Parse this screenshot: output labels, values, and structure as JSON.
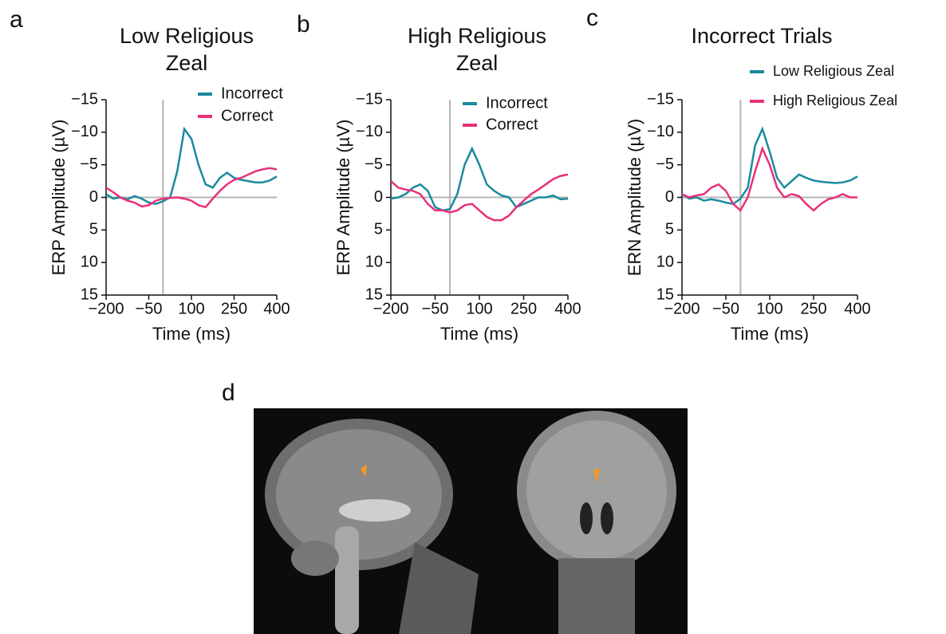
{
  "chart_data": [
    {
      "type": "line",
      "panel": "a",
      "title": "Low Religious Zeal",
      "x_label": "Time (ms)",
      "y_label": "ERP Amplitude (µV)",
      "x": [
        -200,
        -175,
        -150,
        -125,
        -100,
        -75,
        -50,
        -25,
        0,
        25,
        50,
        75,
        100,
        125,
        150,
        175,
        200,
        225,
        250,
        275,
        300,
        325,
        350,
        375,
        400
      ],
      "series": [
        {
          "name": "Incorrect",
          "color": "#1a8a9f",
          "values": [
            -0.5,
            0.2,
            0,
            0.3,
            -0.2,
            0.2,
            0.8,
            1,
            0.6,
            0,
            -4,
            -10.5,
            -9,
            -5,
            -2,
            -1.5,
            -3,
            -3.8,
            -3,
            -2.7,
            -2.5,
            -2.3,
            -2.3,
            -2.6,
            -3.2
          ]
        },
        {
          "name": "Correct",
          "color": "#e8317a",
          "values": [
            -1.5,
            -0.8,
            0,
            0.5,
            0.8,
            1.4,
            1.2,
            0.5,
            0.2,
            0.1,
            0,
            0.2,
            0.5,
            1.2,
            1.5,
            0.2,
            -1,
            -2,
            -2.7,
            -3,
            -3.5,
            -4,
            -4.3,
            -4.5,
            -4.3
          ]
        }
      ],
      "xlim": [
        -200,
        400
      ],
      "xticks": [
        {
          "value": -200,
          "label": "−200"
        },
        {
          "value": -50,
          "label": "−50"
        },
        100,
        250,
        400
      ],
      "ylim": [
        15,
        -15
      ],
      "yticks": [
        {
          "value": -15,
          "label": "−15"
        },
        {
          "value": -10,
          "label": "−10"
        },
        {
          "value": -5,
          "label": "−5"
        },
        0,
        5,
        10,
        15
      ],
      "vline": 0,
      "hline": 0
    },
    {
      "type": "line",
      "panel": "b",
      "title": "High Religious Zeal",
      "x_label": "Time (ms)",
      "y_label": "ERP Amplitude (µV)",
      "x": [
        -200,
        -175,
        -150,
        -125,
        -100,
        -75,
        -50,
        -25,
        0,
        25,
        50,
        75,
        100,
        125,
        150,
        175,
        200,
        225,
        250,
        275,
        300,
        325,
        350,
        375,
        400
      ],
      "series": [
        {
          "name": "Incorrect",
          "color": "#1a8a9f",
          "values": [
            0.2,
            0,
            -0.5,
            -1.5,
            -2,
            -1,
            1.5,
            2,
            1.8,
            -0.5,
            -5,
            -7.5,
            -5,
            -2,
            -1,
            -0.3,
            0,
            1.5,
            1,
            0.5,
            0,
            0,
            -0.3,
            0.3,
            0.2
          ]
        },
        {
          "name": "Correct",
          "color": "#e8317a",
          "values": [
            -2.5,
            -1.5,
            -1.2,
            -1,
            -0.5,
            1,
            2,
            2,
            2.3,
            2,
            1.2,
            1,
            2,
            3,
            3.5,
            3.5,
            2.8,
            1.5,
            0.5,
            -0.5,
            -1.2,
            -2,
            -2.8,
            -3.3,
            -3.5
          ]
        }
      ],
      "xlim": [
        -200,
        400
      ],
      "xticks": [
        {
          "value": -200,
          "label": "−200"
        },
        {
          "value": -50,
          "label": "−50"
        },
        100,
        250,
        400
      ],
      "ylim": [
        15,
        -15
      ],
      "yticks": [
        {
          "value": -15,
          "label": "−15"
        },
        {
          "value": -10,
          "label": "−10"
        },
        {
          "value": -5,
          "label": "−5"
        },
        0,
        5,
        10,
        15
      ],
      "vline": 0,
      "hline": 0
    },
    {
      "type": "line",
      "panel": "c",
      "title": "Incorrect Trials",
      "x_label": "Time (ms)",
      "y_label": "ERN Amplitude (µV)",
      "x": [
        -200,
        -175,
        -150,
        -125,
        -100,
        -75,
        -50,
        -25,
        0,
        25,
        50,
        75,
        100,
        125,
        150,
        175,
        200,
        225,
        250,
        275,
        300,
        325,
        350,
        375,
        400
      ],
      "series": [
        {
          "name": "Low Religious Zeal",
          "color": "#1a8a9f",
          "values": [
            -0.5,
            0.2,
            0,
            0.5,
            0.3,
            0.5,
            0.8,
            1,
            0.2,
            -1.5,
            -8,
            -10.5,
            -7,
            -3,
            -1.5,
            -2.5,
            -3.5,
            -3,
            -2.6,
            -2.4,
            -2.3,
            -2.2,
            -2.3,
            -2.6,
            -3.2
          ]
        },
        {
          "name": "High Religious Zeal",
          "color": "#e8317a",
          "values": [
            -0.5,
            0,
            -0.3,
            -0.5,
            -1.5,
            -2,
            -1,
            1,
            2,
            0,
            -4,
            -7.5,
            -5,
            -1.5,
            0,
            -0.5,
            -0.2,
            1,
            2,
            1,
            0.3,
            0,
            -0.5,
            0,
            0
          ]
        }
      ],
      "xlim": [
        -200,
        400
      ],
      "xticks": [
        {
          "value": -200,
          "label": "−200"
        },
        {
          "value": -50,
          "label": "−50"
        },
        100,
        250,
        400
      ],
      "ylim": [
        15,
        -15
      ],
      "yticks": [
        {
          "value": -15,
          "label": "−15"
        },
        {
          "value": -10,
          "label": "−10"
        },
        {
          "value": -5,
          "label": "−5"
        },
        0,
        5,
        10,
        15
      ],
      "vline": 0,
      "hline": 0
    }
  ],
  "image_panel": {
    "panel": "d"
  }
}
